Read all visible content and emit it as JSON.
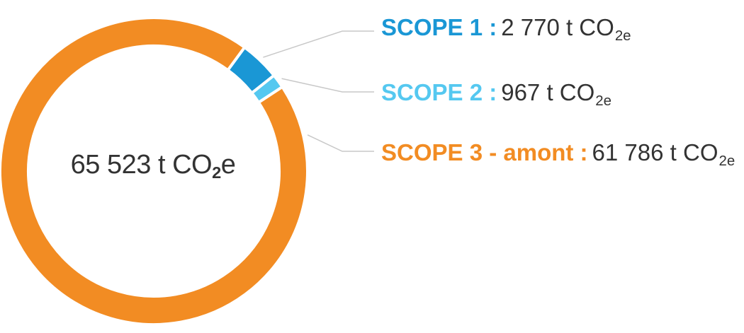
{
  "chart_data": {
    "type": "pie",
    "donut": true,
    "title": "",
    "total": {
      "prefix": "65 523 t CO",
      "subscript": "2",
      "suffix": "e"
    },
    "categories": [
      "SCOPE 1",
      "SCOPE 2",
      "SCOPE 3 - amont"
    ],
    "values": [
      2770,
      967,
      61786
    ],
    "slices": [
      {
        "name": "SCOPE 1 :",
        "value_text": "2 770 t CO",
        "unit_sub": "2e",
        "value": 2770,
        "color": "#1a97d5"
      },
      {
        "name": "SCOPE 2 :",
        "value_text": "967 t CO",
        "unit_sub": "2e",
        "value": 967,
        "color": "#55c8f0"
      },
      {
        "name": "SCOPE 3 - amont :",
        "value_text": "61 786 t CO",
        "unit_sub": "2e",
        "value": 61786,
        "color": "#f28c23"
      }
    ],
    "legend_position": "right",
    "leader_line_color": "#c8c8c8"
  }
}
